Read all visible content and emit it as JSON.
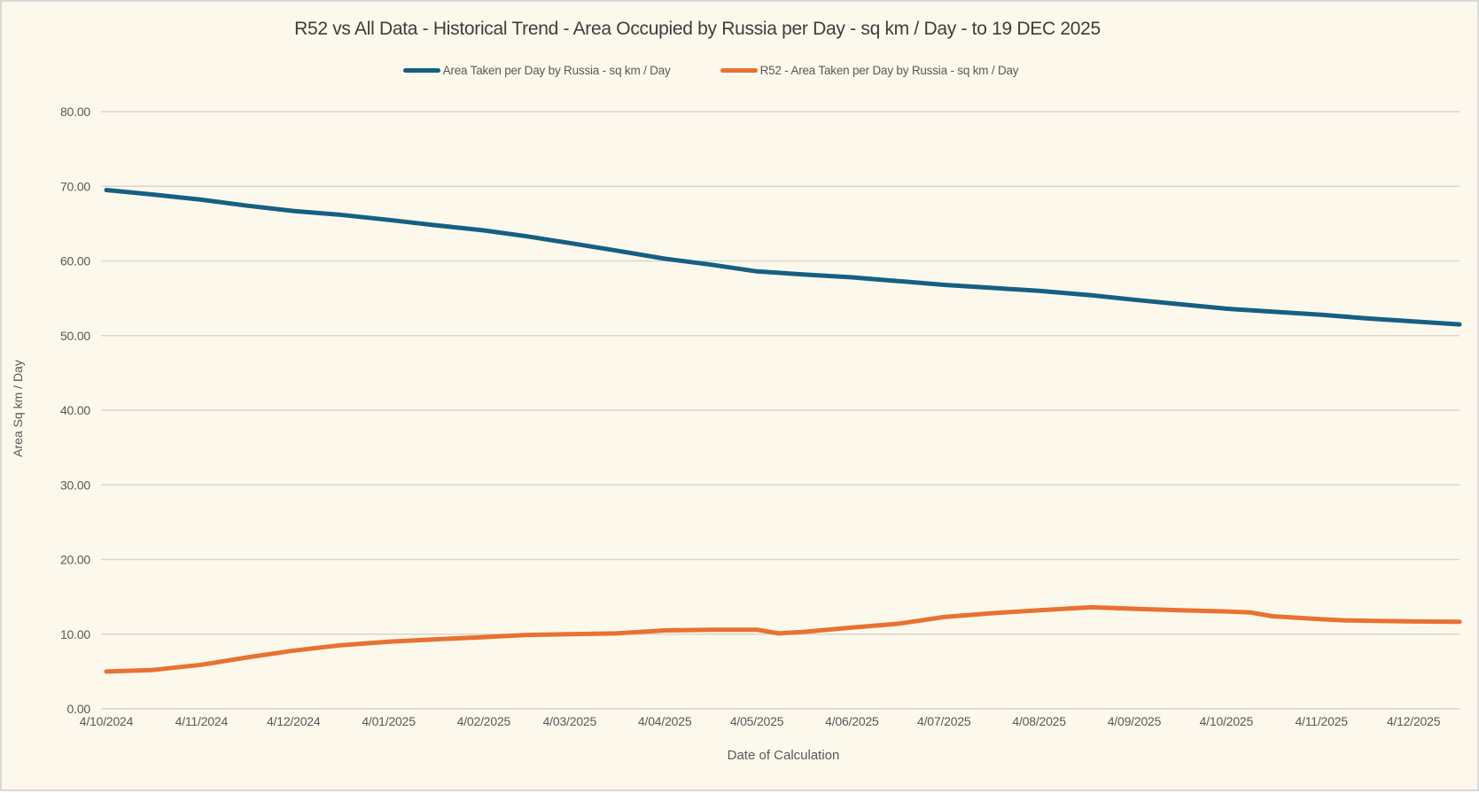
{
  "chart": {
    "title": "R52 vs All Data - Historical Trend - Area Occupied by Russia per Day - sq km / Day - to 19 DEC 2025",
    "x_axis_title": "Date of Calculation",
    "y_axis_title": "Area Sq km / Day",
    "background_color": "#fdf8ec",
    "gridline_color": "#d9d6cd",
    "text_color": "#595959"
  },
  "chart_data": {
    "type": "line",
    "title": "R52 vs All Data - Historical Trend - Area Occupied by Russia per Day - sq km / Day - to 19 DEC 2025",
    "xlabel": "Date of Calculation",
    "ylabel": "Area Sq km / Day",
    "ylim": [
      0,
      80
    ],
    "x_span_days": 441,
    "grid": "horizontal",
    "legend_position": "top",
    "y_ticks": [
      {
        "label": "0.00",
        "value": 0
      },
      {
        "label": "10.00",
        "value": 10
      },
      {
        "label": "20.00",
        "value": 20
      },
      {
        "label": "30.00",
        "value": 30
      },
      {
        "label": "40.00",
        "value": 40
      },
      {
        "label": "50.00",
        "value": 50
      },
      {
        "label": "60.00",
        "value": 60
      },
      {
        "label": "70.00",
        "value": 70
      },
      {
        "label": "80.00",
        "value": 80
      }
    ],
    "x_ticks": [
      {
        "label": "4/10/2024",
        "day": 0
      },
      {
        "label": "4/11/2024",
        "day": 31
      },
      {
        "label": "4/12/2024",
        "day": 61
      },
      {
        "label": "4/01/2025",
        "day": 92
      },
      {
        "label": "4/02/2025",
        "day": 123
      },
      {
        "label": "4/03/2025",
        "day": 151
      },
      {
        "label": "4/04/2025",
        "day": 182
      },
      {
        "label": "4/05/2025",
        "day": 212
      },
      {
        "label": "4/06/2025",
        "day": 243
      },
      {
        "label": "4/07/2025",
        "day": 273
      },
      {
        "label": "4/08/2025",
        "day": 304
      },
      {
        "label": "4/09/2025",
        "day": 335
      },
      {
        "label": "4/10/2025",
        "day": 365
      },
      {
        "label": "4/11/2025",
        "day": 396
      },
      {
        "label": "4/12/2025",
        "day": 426
      }
    ],
    "series": [
      {
        "name": "Area Taken per Day by Russia - sq km / Day",
        "color": "#156082",
        "points": [
          {
            "date": "4/10/2024",
            "day": 0,
            "value": 69.5
          },
          {
            "date": "19/10/2024",
            "day": 15,
            "value": 68.9
          },
          {
            "date": "4/11/2024",
            "day": 31,
            "value": 68.2
          },
          {
            "date": "19/11/2024",
            "day": 46,
            "value": 67.4
          },
          {
            "date": "4/12/2024",
            "day": 61,
            "value": 66.7
          },
          {
            "date": "19/12/2024",
            "day": 76,
            "value": 66.2
          },
          {
            "date": "4/01/2025",
            "day": 92,
            "value": 65.5
          },
          {
            "date": "19/01/2025",
            "day": 107,
            "value": 64.8
          },
          {
            "date": "4/02/2025",
            "day": 123,
            "value": 64.1
          },
          {
            "date": "18/02/2025",
            "day": 137,
            "value": 63.3
          },
          {
            "date": "4/03/2025",
            "day": 151,
            "value": 62.4
          },
          {
            "date": "19/03/2025",
            "day": 166,
            "value": 61.4
          },
          {
            "date": "4/04/2025",
            "day": 182,
            "value": 60.3
          },
          {
            "date": "19/04/2025",
            "day": 197,
            "value": 59.5
          },
          {
            "date": "4/05/2025",
            "day": 212,
            "value": 58.6
          },
          {
            "date": "19/05/2025",
            "day": 227,
            "value": 58.2
          },
          {
            "date": "4/06/2025",
            "day": 243,
            "value": 57.8
          },
          {
            "date": "19/06/2025",
            "day": 258,
            "value": 57.3
          },
          {
            "date": "4/07/2025",
            "day": 273,
            "value": 56.8
          },
          {
            "date": "19/07/2025",
            "day": 288,
            "value": 56.4
          },
          {
            "date": "4/08/2025",
            "day": 304,
            "value": 56.0
          },
          {
            "date": "21/08/2025",
            "day": 321,
            "value": 55.4
          },
          {
            "date": "4/09/2025",
            "day": 335,
            "value": 54.8
          },
          {
            "date": "19/09/2025",
            "day": 350,
            "value": 54.2
          },
          {
            "date": "4/10/2025",
            "day": 365,
            "value": 53.6
          },
          {
            "date": "19/10/2025",
            "day": 380,
            "value": 53.2
          },
          {
            "date": "4/11/2025",
            "day": 396,
            "value": 52.8
          },
          {
            "date": "19/11/2025",
            "day": 411,
            "value": 52.3
          },
          {
            "date": "4/12/2025",
            "day": 426,
            "value": 51.9
          },
          {
            "date": "19/12/2025",
            "day": 441,
            "value": 51.5
          }
        ]
      },
      {
        "name": "R52 - Area Taken per Day by Russia - sq km / Day",
        "color": "#E97132",
        "points": [
          {
            "date": "4/10/2024",
            "day": 0,
            "value": 5.0
          },
          {
            "date": "19/10/2024",
            "day": 15,
            "value": 5.2
          },
          {
            "date": "4/11/2024",
            "day": 31,
            "value": 5.9
          },
          {
            "date": "19/11/2024",
            "day": 46,
            "value": 6.9
          },
          {
            "date": "4/12/2024",
            "day": 61,
            "value": 7.8
          },
          {
            "date": "19/12/2024",
            "day": 76,
            "value": 8.5
          },
          {
            "date": "4/01/2025",
            "day": 92,
            "value": 9.0
          },
          {
            "date": "19/01/2025",
            "day": 107,
            "value": 9.3
          },
          {
            "date": "4/02/2025",
            "day": 123,
            "value": 9.6
          },
          {
            "date": "18/02/2025",
            "day": 137,
            "value": 9.9
          },
          {
            "date": "4/03/2025",
            "day": 151,
            "value": 10.0
          },
          {
            "date": "19/03/2025",
            "day": 166,
            "value": 10.1
          },
          {
            "date": "4/04/2025",
            "day": 182,
            "value": 10.5
          },
          {
            "date": "19/04/2025",
            "day": 197,
            "value": 10.6
          },
          {
            "date": "4/05/2025",
            "day": 212,
            "value": 10.6
          },
          {
            "date": "11/05/2025",
            "day": 219,
            "value": 10.1
          },
          {
            "date": "19/05/2025",
            "day": 227,
            "value": 10.3
          },
          {
            "date": "4/06/2025",
            "day": 243,
            "value": 10.9
          },
          {
            "date": "19/06/2025",
            "day": 258,
            "value": 11.4
          },
          {
            "date": "4/07/2025",
            "day": 273,
            "value": 12.3
          },
          {
            "date": "19/07/2025",
            "day": 288,
            "value": 12.8
          },
          {
            "date": "4/08/2025",
            "day": 304,
            "value": 13.2
          },
          {
            "date": "21/08/2025",
            "day": 321,
            "value": 13.6
          },
          {
            "date": "4/09/2025",
            "day": 335,
            "value": 13.4
          },
          {
            "date": "19/09/2025",
            "day": 350,
            "value": 13.2
          },
          {
            "date": "4/10/2025",
            "day": 365,
            "value": 13.05
          },
          {
            "date": "12/10/2025",
            "day": 373,
            "value": 12.9
          },
          {
            "date": "19/10/2025",
            "day": 380,
            "value": 12.4
          },
          {
            "date": "4/11/2025",
            "day": 396,
            "value": 12.0
          },
          {
            "date": "12/11/2025",
            "day": 404,
            "value": 11.85
          },
          {
            "date": "19/11/2025",
            "day": 411,
            "value": 11.8
          },
          {
            "date": "4/12/2025",
            "day": 426,
            "value": 11.7
          },
          {
            "date": "19/12/2025",
            "day": 441,
            "value": 11.65
          }
        ]
      }
    ]
  }
}
